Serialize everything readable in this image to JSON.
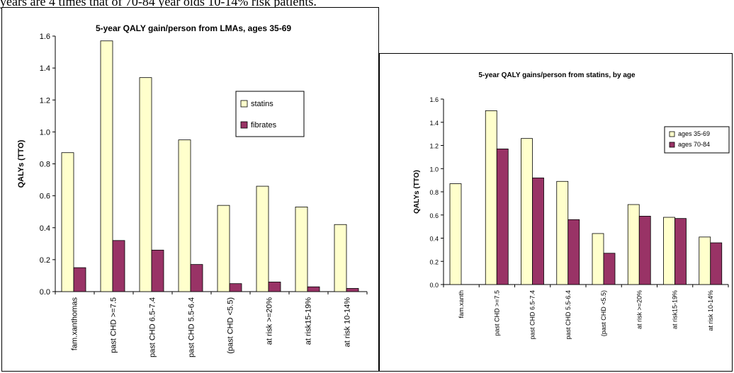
{
  "page_text": "years are 4 times that of 70-84 year olds 10-14% risk patients.",
  "colors": {
    "statins": "#FFFFCC",
    "fibrates": "#993366",
    "outline": "#000000"
  },
  "chart_data": [
    {
      "type": "bar",
      "title": "5-year QALY gain/person from LMAs, ages 35-69",
      "ylabel": "QALYs (TTO)",
      "xlabel": "",
      "ylim": [
        0,
        1.6
      ],
      "yticks": [
        "0.0",
        "0.2",
        "0.4",
        "0.6",
        "0.8",
        "1.0",
        "1.2",
        "1.4",
        "1.6"
      ],
      "categories": [
        "fam.xanthomas",
        "past CHD >=7.5",
        "past CHD 6.5-7.4",
        "past CHD 5.5-6.4",
        "(past CHD <5.5)",
        "at risk >=20%",
        "at risk15-19%",
        "at risk 10-14%"
      ],
      "series": [
        {
          "name": "statins",
          "values": [
            0.87,
            1.57,
            1.34,
            0.95,
            0.54,
            0.66,
            0.53,
            0.42
          ]
        },
        {
          "name": "fibrates",
          "values": [
            0.15,
            0.32,
            0.26,
            0.17,
            0.05,
            0.06,
            0.03,
            0.02
          ]
        }
      ],
      "legend_position": "right"
    },
    {
      "type": "bar",
      "title": "5-year QALY gains/person from statins, by age",
      "ylabel": "QALYs (TTO)",
      "xlabel": "",
      "ylim": [
        0,
        1.6
      ],
      "yticks": [
        "0.0",
        "0.2",
        "0.4",
        "0.6",
        "0.8",
        "1.0",
        "1.2",
        "1.4",
        "1.6"
      ],
      "categories": [
        "fam.xanth",
        "past CHD >=7.5",
        "past CHD 6.5-7.4",
        "past CHD 5.5-6.4",
        "(past CHD <5.5)",
        "at risk >=20%",
        "at risk15-19%",
        "at risk 10-14%"
      ],
      "series": [
        {
          "name": "ages 35-69",
          "values": [
            0.87,
            1.5,
            1.26,
            0.89,
            0.44,
            0.69,
            0.58,
            0.41
          ]
        },
        {
          "name": "ages 70-84",
          "values": [
            null,
            1.17,
            0.92,
            0.56,
            0.27,
            0.59,
            0.57,
            0.36
          ]
        }
      ],
      "legend_position": "right"
    }
  ]
}
